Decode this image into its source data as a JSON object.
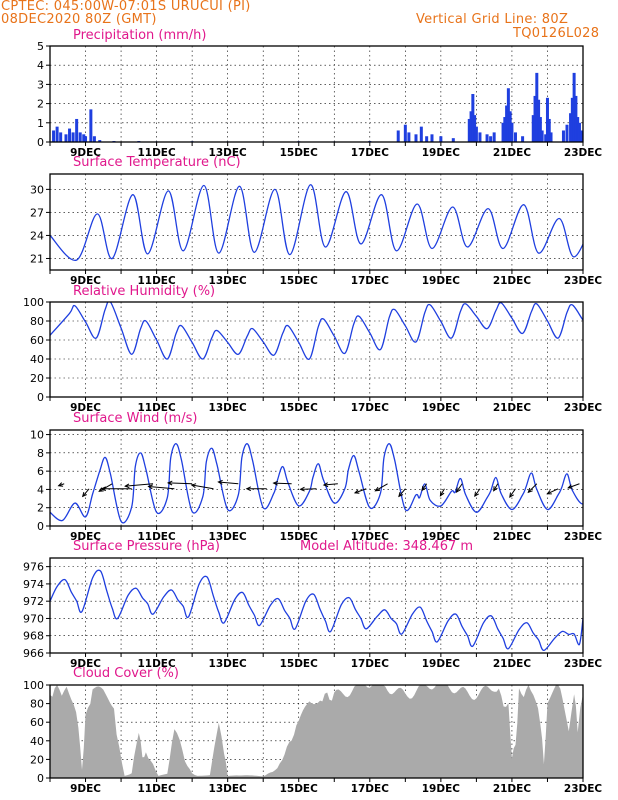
{
  "header": {
    "line1_left": "CPTEC:   045:00W-07:01S   URUCUI (PI)",
    "line2_left": "08DEC2020 80Z (GMT)",
    "line2_right": "Vertical Grid Line: 80Z",
    "line3_right": "TQ0126L028"
  },
  "colors": {
    "header": "#e8731a",
    "title": "#e0188c",
    "line": "#1f3fdf",
    "cloud": "#aaaaaa",
    "arrow": "#000000"
  },
  "x_tick_labels": [
    "9DEC",
    "11DEC",
    "13DEC",
    "15DEC",
    "17DEC",
    "19DEC",
    "21DEC",
    "23DEC"
  ],
  "chart_data": [
    {
      "type": "bar",
      "title": "Precipitation (mm/h)",
      "ylim": [
        0,
        5
      ],
      "yticks": [
        "0",
        "1",
        "2",
        "3",
        "4",
        "5"
      ],
      "x_range_days": [
        8.0,
        23.0
      ],
      "series": [
        {
          "values": [
            [
              8.1,
              0.6
            ],
            [
              8.2,
              0.8
            ],
            [
              8.3,
              0.5
            ],
            [
              8.45,
              0.4
            ],
            [
              8.55,
              0.7
            ],
            [
              8.65,
              0.5
            ],
            [
              8.75,
              1.2
            ],
            [
              8.85,
              0.5
            ],
            [
              8.95,
              0.4
            ],
            [
              9.0,
              0.3
            ],
            [
              9.15,
              1.7
            ],
            [
              9.25,
              0.3
            ],
            [
              9.4,
              0.1
            ],
            [
              9.8,
              0.05
            ],
            [
              10.5,
              0.05
            ],
            [
              11.0,
              0.03
            ],
            [
              12.0,
              0.04
            ],
            [
              13.0,
              0.03
            ],
            [
              14.0,
              0.03
            ],
            [
              15.0,
              0.04
            ],
            [
              16.0,
              0.03
            ],
            [
              17.0,
              0.05
            ],
            [
              17.8,
              0.6
            ],
            [
              18.0,
              0.9
            ],
            [
              18.1,
              0.5
            ],
            [
              18.3,
              0.4
            ],
            [
              18.45,
              0.8
            ],
            [
              18.6,
              0.3
            ],
            [
              18.75,
              0.4
            ],
            [
              19.0,
              0.3
            ],
            [
              19.35,
              0.2
            ],
            [
              19.8,
              1.2
            ],
            [
              19.85,
              1.6
            ],
            [
              19.9,
              2.5
            ],
            [
              19.95,
              1.4
            ],
            [
              20.0,
              0.8
            ],
            [
              20.1,
              0.5
            ],
            [
              20.3,
              0.4
            ],
            [
              20.4,
              0.3
            ],
            [
              20.5,
              0.5
            ],
            [
              20.75,
              1.0
            ],
            [
              20.8,
              1.3
            ],
            [
              20.85,
              1.9
            ],
            [
              20.9,
              2.8
            ],
            [
              20.95,
              1.6
            ],
            [
              21.0,
              1.0
            ],
            [
              21.1,
              0.5
            ],
            [
              21.3,
              0.3
            ],
            [
              21.6,
              1.4
            ],
            [
              21.65,
              2.4
            ],
            [
              21.7,
              3.6
            ],
            [
              21.75,
              2.2
            ],
            [
              21.8,
              1.3
            ],
            [
              21.85,
              0.6
            ],
            [
              21.95,
              0.4
            ],
            [
              22.0,
              2.3
            ],
            [
              22.05,
              1.2
            ],
            [
              22.1,
              0.5
            ],
            [
              22.45,
              0.6
            ],
            [
              22.55,
              0.9
            ],
            [
              22.65,
              1.5
            ],
            [
              22.7,
              2.3
            ],
            [
              22.75,
              3.6
            ],
            [
              22.8,
              2.4
            ],
            [
              22.85,
              1.3
            ],
            [
              22.9,
              1.0
            ],
            [
              22.95,
              0.6
            ]
          ]
        }
      ]
    },
    {
      "type": "line",
      "title": "Surface Temperature (nC)",
      "ylim": [
        19.5,
        32
      ],
      "yticks": [
        "21",
        "24",
        "27",
        "30"
      ],
      "ytick_values": [
        21,
        24,
        27,
        30
      ],
      "series": [
        {
          "min_days": [
            8.75,
            9.75,
            10.75,
            11.75,
            12.75,
            13.75,
            14.75,
            15.75,
            16.75,
            17.75,
            18.75,
            19.75,
            20.75,
            21.75,
            22.75
          ],
          "min_values": [
            20.8,
            21.0,
            21.6,
            22.0,
            21.7,
            21.8,
            21.5,
            22.5,
            22.9,
            22.0,
            22.3,
            22.5,
            22.3,
            21.7,
            21.2
          ],
          "max_days": [
            9.33,
            10.33,
            11.33,
            12.33,
            13.33,
            14.33,
            15.33,
            16.33,
            17.33,
            18.33,
            19.33,
            20.33,
            21.33,
            22.33,
            23.33
          ],
          "max_values": [
            26.8,
            29.3,
            29.8,
            30.5,
            30.4,
            30.0,
            30.6,
            29.7,
            29.3,
            28.1,
            27.7,
            27.5,
            28.0,
            26.2,
            26.5
          ],
          "start_value": 24.0
        }
      ]
    },
    {
      "type": "line",
      "title": "Relative Humidity (%)",
      "ylim": [
        0,
        100
      ],
      "yticks": [
        "0",
        "20",
        "40",
        "60",
        "80",
        "100"
      ],
      "series": [
        {
          "max_days": [
            8.7,
            9.7,
            10.7,
            11.7,
            12.7,
            13.7,
            14.7,
            15.7,
            16.7,
            17.7,
            18.7,
            19.7,
            20.7,
            21.7,
            22.7
          ],
          "max_values": [
            96,
            100,
            80,
            75,
            70,
            72,
            75,
            82,
            85,
            92,
            97,
            98,
            99,
            98,
            97
          ],
          "min_days": [
            9.3,
            10.3,
            11.3,
            12.3,
            13.3,
            14.3,
            15.3,
            16.3,
            17.3,
            18.3,
            19.3,
            20.3,
            21.3,
            22.3,
            23.3
          ],
          "min_values": [
            62,
            45,
            40,
            40,
            45,
            44,
            40,
            46,
            50,
            58,
            62,
            72,
            67,
            62,
            65
          ],
          "start_value": 65
        }
      ]
    },
    {
      "type": "line",
      "title": "Surface Wind (m/s)",
      "ylim": [
        0,
        10.5
      ],
      "yticks": [
        "0",
        "2",
        "4",
        "6",
        "8",
        "10"
      ],
      "series": [
        {
          "peak_days": [
            9.55,
            10.55,
            11.55,
            12.55,
            13.55,
            14.55,
            15.55,
            16.55,
            17.55,
            18.55,
            19.55,
            20.55,
            21.55,
            22.55
          ],
          "peak_values": [
            7.5,
            8.0,
            9.0,
            8.5,
            9.0,
            6.5,
            6.8,
            7.7,
            9.0,
            4.6,
            5.2,
            5.3,
            5.8,
            5.7
          ],
          "trough_values": [
            0.5,
            1.5,
            1.6,
            1.8,
            2.0,
            2.2,
            2.5,
            2.0,
            1.8,
            2.2,
            1.5,
            1.8,
            1.8,
            2.4
          ],
          "start_value": 1.5
        }
      ],
      "arrows": {
        "days": [
          8.4,
          9.1,
          9.75,
          10.3,
          10.9,
          11.5,
          12.0,
          12.6,
          13.3,
          14.1,
          14.8,
          15.5,
          16.1,
          16.9,
          17.5,
          18.0,
          18.6,
          19.1,
          19.6,
          20.1,
          20.6,
          21.1,
          21.7,
          22.3,
          22.9
        ],
        "angles_deg": [
          200,
          230,
          210,
          180,
          185,
          175,
          178,
          170,
          175,
          180,
          178,
          182,
          185,
          200,
          210,
          230,
          235,
          240,
          235,
          235,
          240,
          235,
          225,
          205,
          200
        ],
        "lengths": [
          6,
          10,
          15,
          30,
          28,
          26,
          24,
          22,
          20,
          20,
          18,
          16,
          14,
          12,
          14,
          10,
          8,
          8,
          10,
          9,
          8,
          10,
          12,
          12,
          12
        ]
      }
    },
    {
      "type": "line",
      "title": "Surface Pressure (hPa)",
      "annotation": "Model Altitude: 348.467  m",
      "ylim": [
        966,
        977
      ],
      "yticks": [
        "966",
        "968",
        "970",
        "972",
        "974",
        "976"
      ],
      "series": [
        {
          "start_value": 972.0,
          "peaks": [
            974.5,
            975.5,
            973.5,
            973.3,
            974.8,
            973.0,
            972.3,
            972.8,
            972.4,
            971.0,
            971.3,
            970.5,
            970.3,
            969.5,
            968.5
          ],
          "troughs": [
            970.8,
            970.0,
            970.5,
            970.2,
            969.5,
            969.2,
            968.8,
            968.5,
            968.8,
            968.2,
            967.3,
            966.8,
            966.5,
            966.3,
            967.0
          ],
          "end_value": 970.0
        }
      ]
    },
    {
      "type": "area",
      "title": "Cloud Cover (%)",
      "ylim": [
        0,
        100
      ],
      "yticks": [
        "0",
        "20",
        "40",
        "60",
        "80",
        "100"
      ],
      "series": [
        {
          "profile": [
            [
              8.0,
              95
            ],
            [
              8.2,
              98
            ],
            [
              8.4,
              90
            ],
            [
              8.6,
              85
            ],
            [
              8.8,
              50
            ],
            [
              8.9,
              10
            ],
            [
              9.0,
              60
            ],
            [
              9.2,
              95
            ],
            [
              9.5,
              88
            ],
            [
              9.8,
              75
            ],
            [
              9.95,
              30
            ],
            [
              10.1,
              2
            ],
            [
              10.3,
              5
            ],
            [
              10.5,
              55
            ],
            [
              10.6,
              20
            ],
            [
              10.7,
              30
            ],
            [
              10.9,
              15
            ],
            [
              11.05,
              2
            ],
            [
              11.3,
              5
            ],
            [
              11.5,
              50
            ],
            [
              11.65,
              40
            ],
            [
              11.8,
              20
            ],
            [
              12.0,
              5
            ],
            [
              12.15,
              2
            ],
            [
              12.5,
              3
            ],
            [
              12.75,
              60
            ],
            [
              12.9,
              30
            ],
            [
              13.0,
              2
            ],
            [
              13.5,
              3
            ],
            [
              14.0,
              2
            ],
            [
              14.4,
              10
            ],
            [
              14.6,
              25
            ],
            [
              14.8,
              40
            ],
            [
              15.0,
              55
            ],
            [
              15.3,
              85
            ],
            [
              15.6,
              90
            ],
            [
              16.0,
              95
            ],
            [
              16.5,
              96
            ],
            [
              17.0,
              97
            ],
            [
              17.5,
              98
            ],
            [
              18.0,
              96
            ],
            [
              18.5,
              97
            ],
            [
              19.0,
              96
            ],
            [
              19.5,
              95
            ],
            [
              20.0,
              96
            ],
            [
              20.5,
              97
            ],
            [
              20.9,
              80
            ],
            [
              21.0,
              20
            ],
            [
              21.1,
              40
            ],
            [
              21.2,
              85
            ],
            [
              21.4,
              90
            ],
            [
              21.6,
              95
            ],
            [
              21.8,
              60
            ],
            [
              21.9,
              15
            ],
            [
              22.0,
              80
            ],
            [
              22.3,
              95
            ],
            [
              22.6,
              50
            ],
            [
              22.75,
              85
            ],
            [
              22.85,
              55
            ],
            [
              23.0,
              90
            ]
          ]
        }
      ]
    }
  ]
}
